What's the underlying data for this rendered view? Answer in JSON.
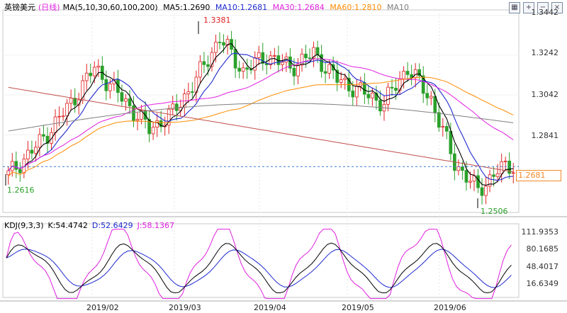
{
  "header": {
    "symbol": "英镑美元",
    "period": "(日线)",
    "ma_label": "MA(5,10,30,60,100,200)",
    "ma5": "MA5:1.2690",
    "ma10": "MA10:1.2681",
    "ma30": "MA30:1.2684",
    "ma60": "MA60:1.2810",
    "ma10_tail": "MA10"
  },
  "kdj_header": {
    "label": "KDJ(9,3,3)",
    "k": "K:54.4742",
    "d": "D:52.6429",
    "j": "J:58.1367"
  },
  "window_icons": [
    "grid-icon",
    "plus-icon",
    "minus-icon",
    "close-icon"
  ],
  "chart_data": [
    {
      "type": "candlestick",
      "y_ticks": [
        "1.3442",
        "1.3242",
        "1.3042",
        "1.2841"
      ],
      "ylim": [
        1.245,
        1.347
      ],
      "x_ticks": [
        "2019/02",
        "2019/03",
        "2019/04",
        "2019/05",
        "2019/06"
      ],
      "last_price": "1.2681",
      "annotations": {
        "high": "1.3381",
        "low_left": "1.2616",
        "low_right": "1.2506"
      },
      "colors": {
        "up": "#e02020",
        "down": "#2aa02a",
        "ma5": "#000000",
        "ma10": "#1f2ad0",
        "ma30": "#e020e0",
        "ma60": "#ff8c00",
        "ma100": "#c0504d",
        "ma200": "#808080"
      }
    },
    {
      "type": "line",
      "title": "KDJ",
      "y_ticks": [
        "111.9353",
        "80.1685",
        "48.4017",
        "16.6349"
      ],
      "ylim": [
        0,
        120
      ],
      "colors": {
        "k": "#000000",
        "d": "#1f2ad0",
        "j": "#e020e0"
      }
    }
  ]
}
